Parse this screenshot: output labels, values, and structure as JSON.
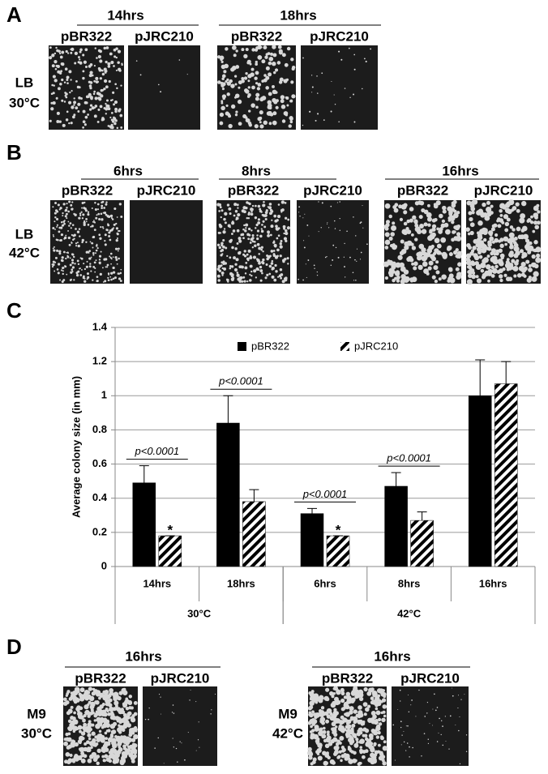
{
  "panels": [
    {
      "label": "A",
      "condition": [
        "LB",
        "30°C"
      ],
      "groups": [
        {
          "time": "14hrs",
          "plasmids": [
            "pBR322",
            "pJRC210"
          ]
        },
        {
          "time": "18hrs",
          "plasmids": [
            "pBR322",
            "pJRC210"
          ]
        }
      ]
    },
    {
      "label": "B",
      "condition": [
        "LB",
        "42°C"
      ],
      "groups": [
        {
          "time": "6hrs",
          "plasmids": [
            "pBR322",
            "pJRC210"
          ]
        },
        {
          "time": "8hrs",
          "plasmids": [
            "pBR322",
            "pJRC210"
          ]
        },
        {
          "time": "16hrs",
          "plasmids": [
            "pBR322",
            "pJRC210"
          ]
        }
      ]
    },
    {
      "label": "D",
      "groups": [
        {
          "time": "16hrs",
          "condition": [
            "M9",
            "30°C"
          ],
          "plasmids": [
            "pBR322",
            "pJRC210"
          ]
        },
        {
          "time": "16hrs",
          "condition": [
            "M9",
            "42°C"
          ],
          "plasmids": [
            "pBR322",
            "pJRC210"
          ]
        }
      ]
    }
  ],
  "chart_data": {
    "type": "bar",
    "label": "C",
    "y_label": "Average colony size (in mm)",
    "categories": [
      "14hrs",
      "18hrs",
      "6hrs",
      "8hrs",
      "16hrs"
    ],
    "groups": [
      {
        "name": "30°C",
        "count": 2
      },
      {
        "name": "42°C",
        "count": 3
      }
    ],
    "series": [
      {
        "name": "pBR322",
        "color": "#000000",
        "values": [
          0.49,
          0.84,
          0.31,
          0.47,
          1.0
        ],
        "errors": [
          0.1,
          0.16,
          0.03,
          0.08,
          0.21
        ]
      },
      {
        "name": "pJRC210",
        "color": "hatched",
        "values": [
          0.18,
          0.38,
          0.18,
          0.27,
          1.07
        ],
        "errors": [
          0.0,
          0.07,
          0.0,
          0.05,
          0.13
        ]
      }
    ],
    "significance": [
      "p<0.0001",
      "p<0.0001",
      "p<0.0001",
      "p<0.0001",
      null
    ],
    "markers": [
      "*",
      null,
      "*",
      null,
      null
    ],
    "ylim": [
      0,
      1.4
    ],
    "yticks": [
      0,
      0.2,
      0.4,
      0.6,
      0.8,
      1,
      1.2,
      1.4
    ],
    "grid": true
  }
}
